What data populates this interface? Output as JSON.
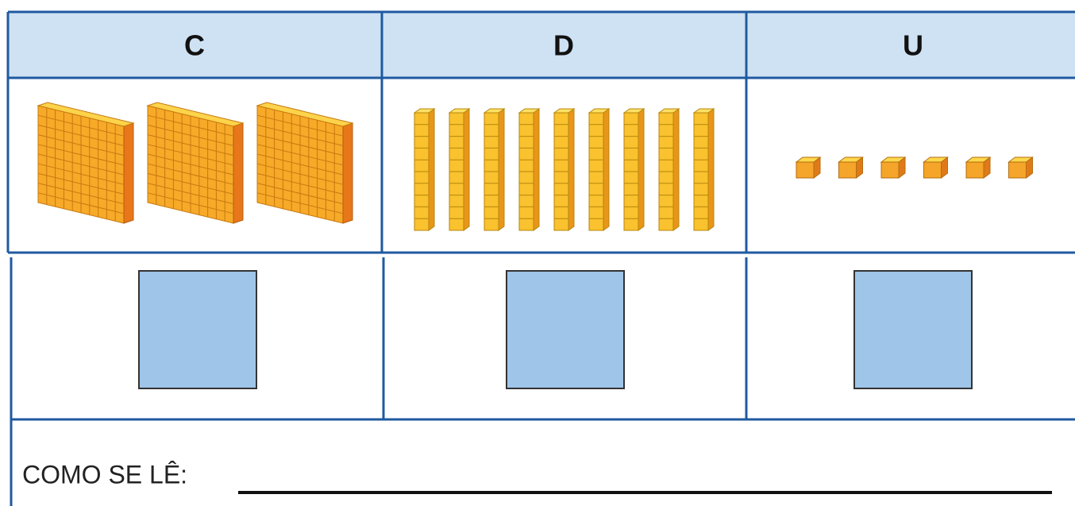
{
  "table": {
    "headers": [
      "C",
      "D",
      "U"
    ],
    "block_counts": [
      3,
      9,
      6
    ]
  },
  "footer": {
    "label": "COMO SE LÊ:"
  }
}
